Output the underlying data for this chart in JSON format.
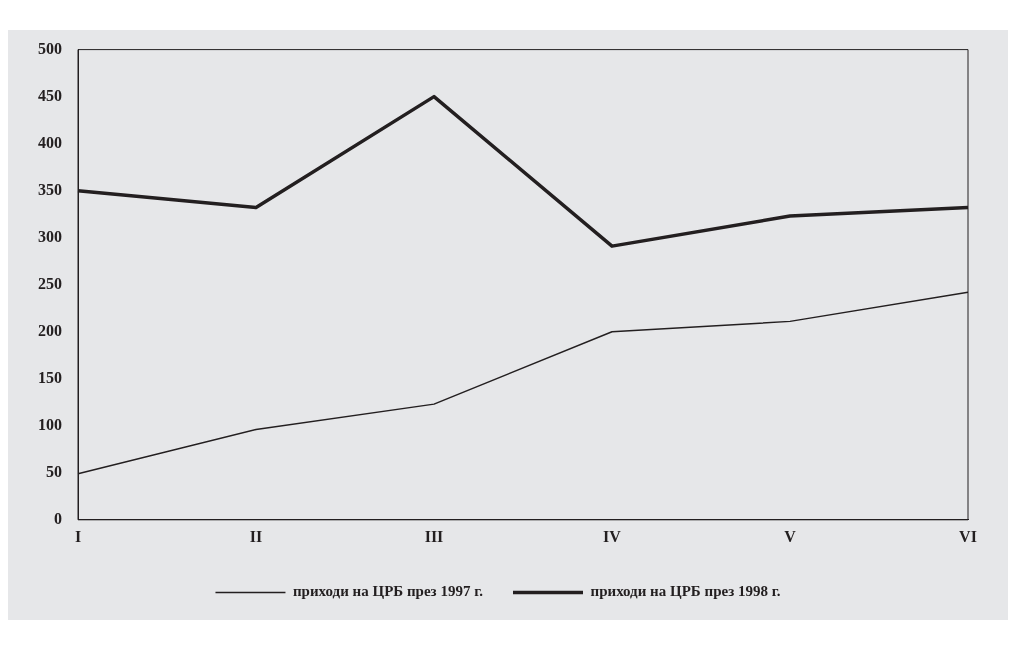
{
  "chart_data": {
    "type": "line",
    "categories": [
      "I",
      "II",
      "III",
      "IV",
      "V",
      "VI"
    ],
    "series": [
      {
        "name": "приходи на ЦРБ през 1997 г.",
        "color": "#231f20",
        "values": [
          49,
          96,
          123,
          200,
          211,
          242
        ]
      },
      {
        "name": "приходи на ЦРБ през 1998 г.",
        "color": "#231f20",
        "values": [
          350,
          332,
          450,
          291,
          323,
          332
        ]
      }
    ],
    "ylim": [
      0,
      500
    ],
    "yticks": [
      0,
      50,
      100,
      150,
      200,
      250,
      300,
      350,
      400,
      450,
      500
    ],
    "grid": false,
    "legend": "bottom",
    "marker": "none",
    "line_style": "solid"
  }
}
